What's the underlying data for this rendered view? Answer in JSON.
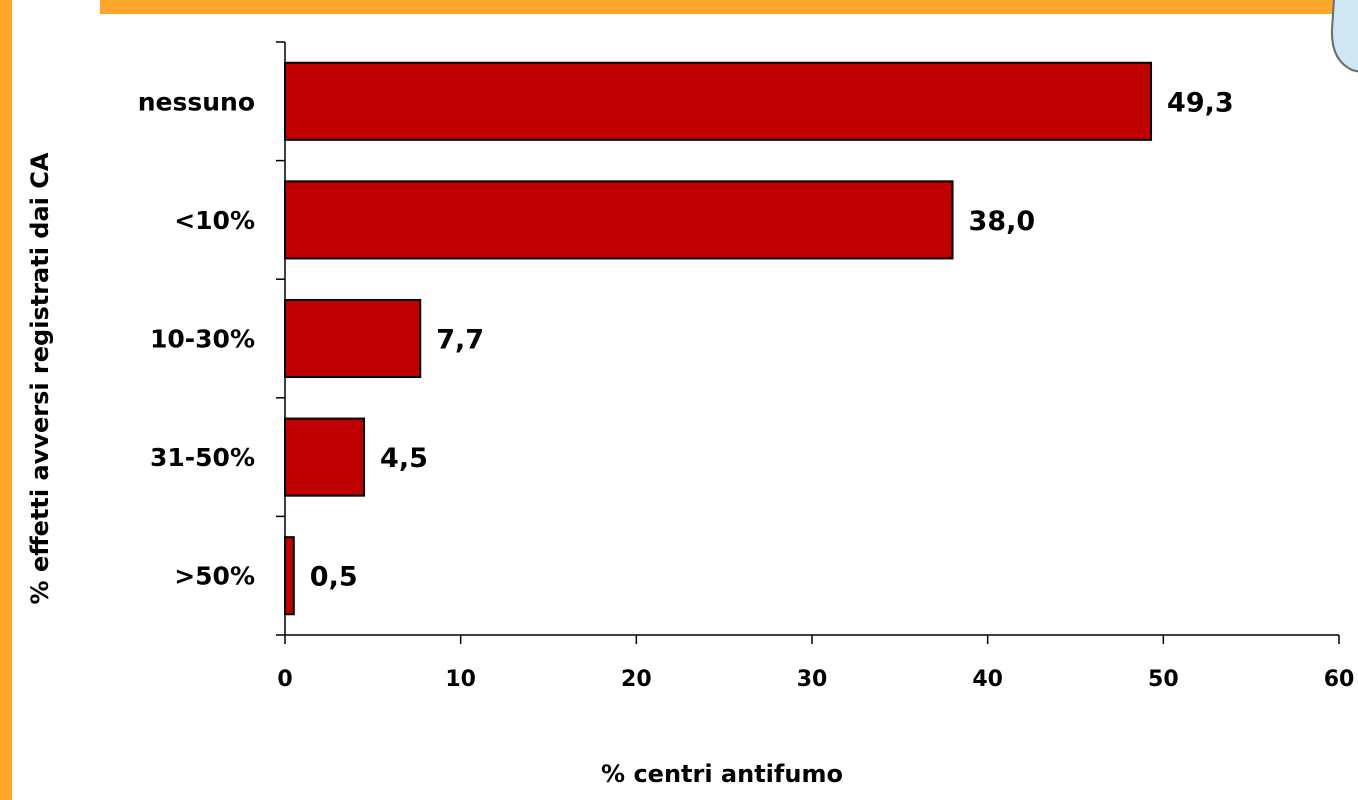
{
  "colors": {
    "frame": "#ffa62b",
    "bar_fill": "#c00000",
    "bar_stroke": "#000000",
    "corner_decor": "#cfe7f3"
  },
  "chart_data": {
    "type": "bar",
    "orientation": "horizontal",
    "categories": [
      "nessuno",
      "<10%",
      "10-30%",
      "31-50%",
      ">50%"
    ],
    "values": [
      49.3,
      38.0,
      7.7,
      4.5,
      0.5
    ],
    "value_labels": [
      "49,3",
      "38,0",
      "7,7",
      "4,5",
      "0,5"
    ],
    "xlabel": "% centri antifumo",
    "ylabel": "% effetti avversi registrati dai CA",
    "xlim": [
      0,
      60
    ],
    "x_ticks": [
      0,
      10,
      20,
      30,
      40,
      50,
      60
    ],
    "x_tick_labels": [
      "0",
      "10",
      "20",
      "30",
      "40",
      "50",
      "60"
    ],
    "grid": false,
    "legend": "none"
  }
}
